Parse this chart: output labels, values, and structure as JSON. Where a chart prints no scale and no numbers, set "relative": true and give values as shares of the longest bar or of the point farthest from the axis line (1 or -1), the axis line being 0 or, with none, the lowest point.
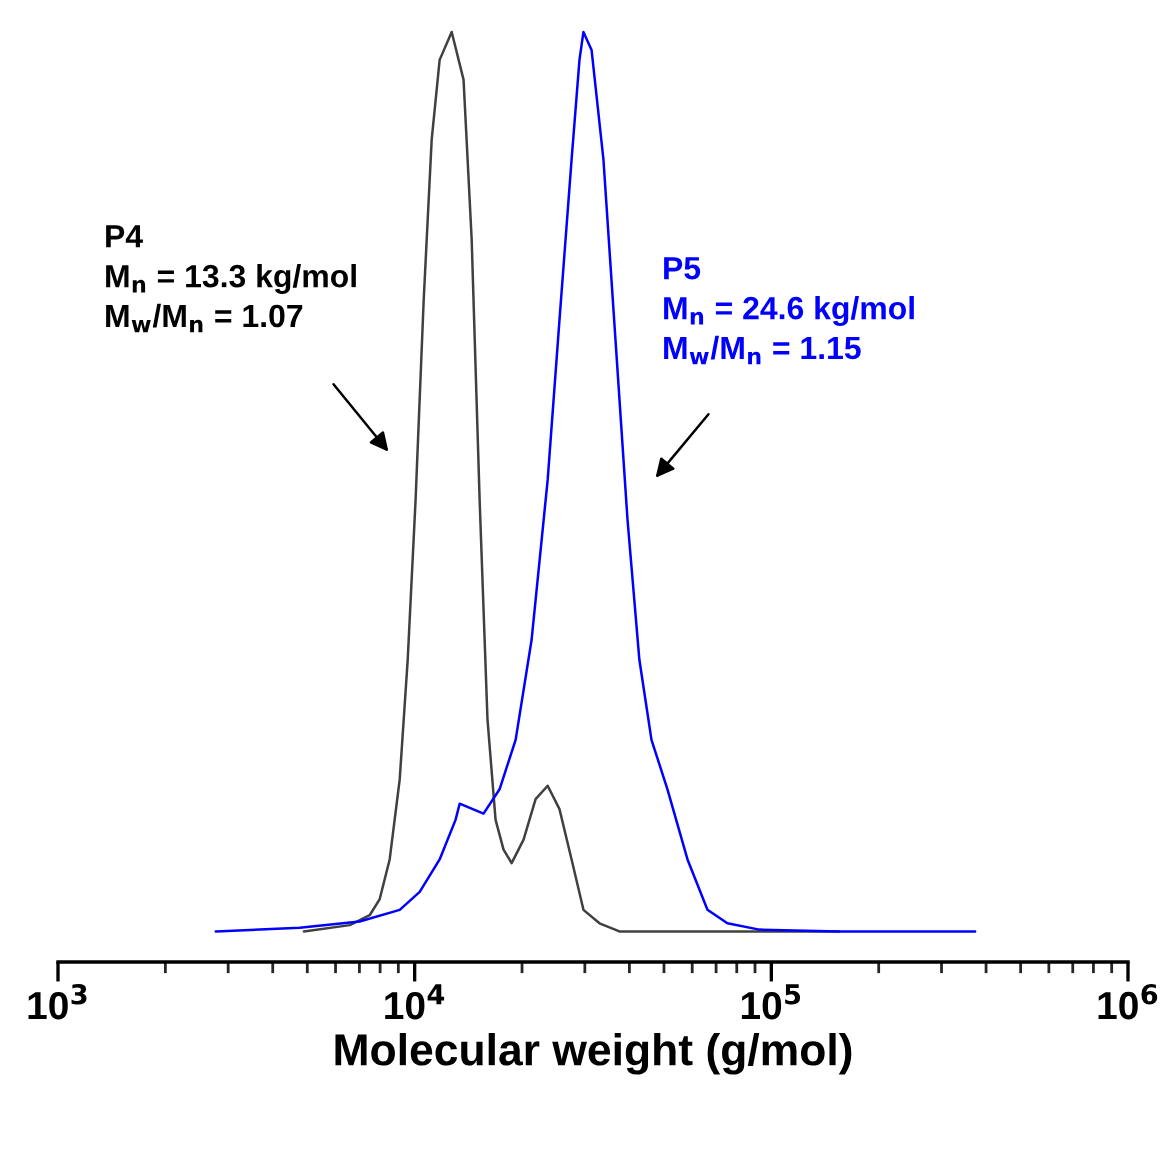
{
  "chart_data": {
    "type": "line",
    "relative": true,
    "log": "x",
    "xlabel": "Molecular weight (g/mol)",
    "xlim": [
      1000,
      1000000
    ],
    "xticks": [
      {
        "value": 1000,
        "label": "10$^{3}$"
      },
      {
        "value": 10000,
        "label": "10$^{4}$"
      },
      {
        "value": 100000,
        "label": "10$^{5}$"
      },
      {
        "value": 1000000,
        "label": "10$^{6}$"
      }
    ],
    "tick_labels": "x",
    "grid": false,
    "marker": "none",
    "line_style": "solid",
    "series": [
      {
        "color": "#404040",
        "x": [
          4890,
          6580,
          7480,
          7980,
          8510,
          9080,
          9560,
          10060,
          10600,
          11160,
          11750,
          12700,
          13710,
          14450,
          15210,
          16000,
          16860,
          17750,
          18700,
          20200,
          21830,
          23600,
          25470,
          27540,
          29730,
          32980,
          37500,
          154900
        ],
        "values": [
          0,
          0.007,
          0.018,
          0.036,
          0.08,
          0.169,
          0.302,
          0.48,
          0.702,
          0.88,
          0.969,
          1,
          0.947,
          0.769,
          0.48,
          0.236,
          0.124,
          0.091,
          0.076,
          0.102,
          0.147,
          0.162,
          0.136,
          0.08,
          0.024,
          0.009,
          0,
          0
        ]
      },
      {
        "color": "#0000ff",
        "x": [
          2770,
          4760,
          7010,
          9080,
          10330,
          11750,
          13020,
          13370,
          15600,
          17300,
          19190,
          21270,
          23600,
          25470,
          27540,
          28980,
          29730,
          31330,
          33830,
          36560,
          39510,
          42660,
          46130,
          51140,
          58210,
          66200,
          75310,
          92510,
          154900,
          372700
        ],
        "values": [
          0,
          0.004,
          0.011,
          0.024,
          0.044,
          0.08,
          0.124,
          0.142,
          0.131,
          0.158,
          0.213,
          0.324,
          0.502,
          0.68,
          0.858,
          0.969,
          1,
          0.98,
          0.858,
          0.658,
          0.458,
          0.302,
          0.213,
          0.158,
          0.08,
          0.024,
          0.009,
          0.002,
          0,
          0
        ]
      }
    ],
    "annotations": [
      "P4",
      "M$_{n}$ = 13.3 kg/mol",
      "M$_{w}$/M$_{n}$ = 1.07",
      "P5",
      "M$_{n}$ = 24.6 kg/mol",
      "M$_{w}$/M$_{n}$ = 1.15"
    ]
  }
}
